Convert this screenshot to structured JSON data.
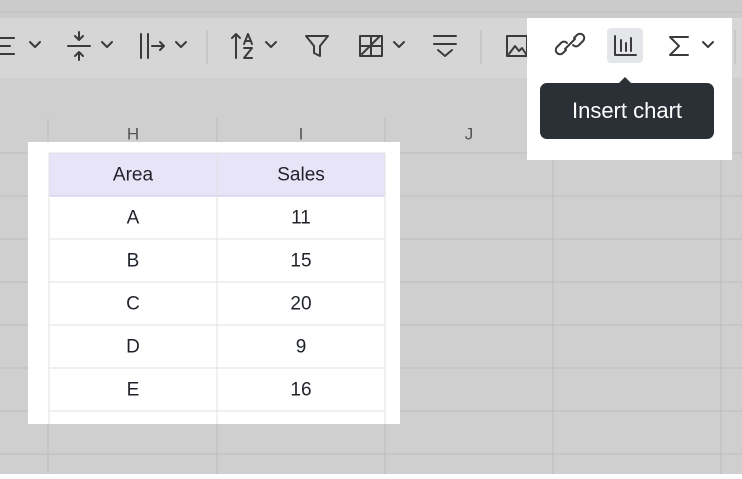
{
  "toolbar": {
    "tooltip": "Insert chart"
  },
  "sheet": {
    "column_headers": [
      "H",
      "I",
      "J"
    ],
    "table": {
      "header": [
        "Area",
        "Sales"
      ],
      "rows": [
        [
          "A",
          11
        ],
        [
          "B",
          15
        ],
        [
          "C",
          20
        ],
        [
          "D",
          9
        ],
        [
          "E",
          16
        ]
      ]
    }
  }
}
